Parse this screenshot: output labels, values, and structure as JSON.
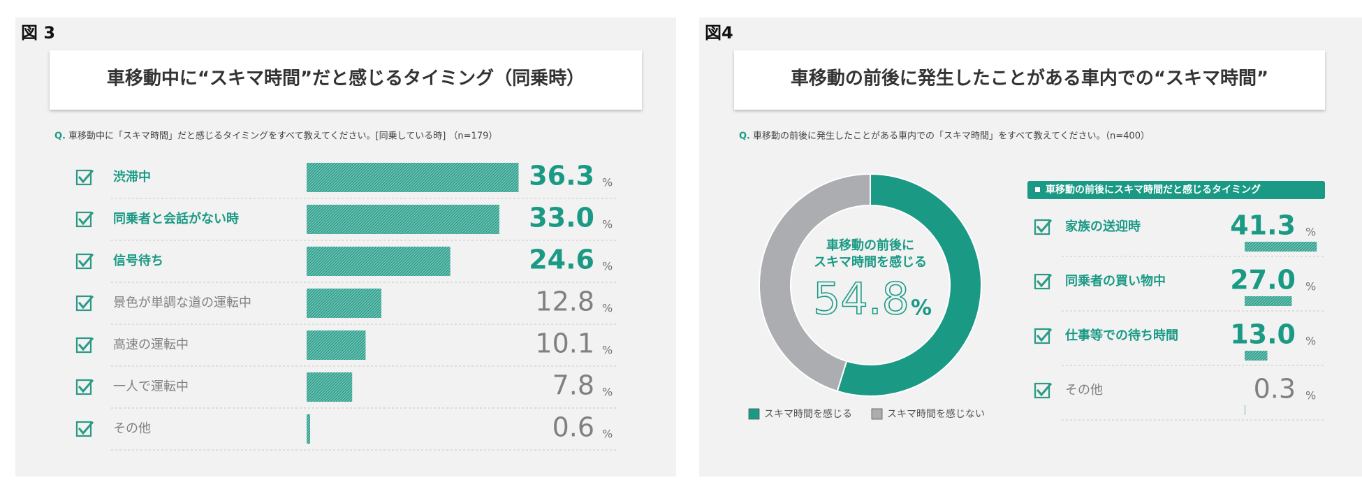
{
  "chart_data": [
    {
      "type": "bar",
      "figure_label": "図 3",
      "title": "車移動中に“スキマ時間”だと感じるタイミング（同乗時）",
      "question_prefix": "Q.",
      "question": "車移動中に「スキマ時間」だと感じるタイミングをすべて教えてください。[同乗している時] （n=179）",
      "categories": [
        "渋滞中",
        "同乗者と会話がない時",
        "信号待ち",
        "景色が単調な道の運転中",
        "高速の運転中",
        "一人で運転中",
        "その他"
      ],
      "values": [
        36.3,
        33,
        24.6,
        12.8,
        10.1,
        7.8,
        0.6
      ],
      "value_labels": [
        "36.3",
        "33.0",
        "24.6",
        "12.8",
        "10.1",
        "7.8",
        "0.6"
      ],
      "unit": "%",
      "color": "#1a9a85",
      "label_colors": [
        "#1a9a85",
        "#1a9a85",
        "#1a9a85",
        "#808080",
        "#808080",
        "#808080",
        "#808080"
      ]
    },
    {
      "type": "pie",
      "figure_label": "図4",
      "title": "車移動の前後に発生したことがある車内での“スキマ時間”",
      "question_prefix": "Q.",
      "question": "車移動の前後に発生したことがある車内での「スキマ時間」をすべて教えてください。（n=400）",
      "categories": [
        "スキマ時間を感じる",
        "スキマ時間を感じない"
      ],
      "values": [
        54.8,
        45.2
      ],
      "colors": [
        "#1a9a85",
        "#abadb0"
      ],
      "hole": true,
      "center_label": [
        "車移動の前後に",
        "スキマ時間を感じる"
      ],
      "unit": "%"
    },
    {
      "type": "bar",
      "title": "車移動の前後にスキマ時間だと感じるタイミング",
      "categories": [
        "家族の送迎時",
        "同乗者の買い物中",
        "仕事等での待ち時間",
        "その他"
      ],
      "values": [
        41.3,
        27,
        13,
        0.3
      ],
      "value_labels": [
        "41.3",
        "27.0",
        "13.0",
        "0.3"
      ],
      "unit": "%",
      "color": "#1a9a85",
      "label_colors": [
        "#1a9a85",
        "#1a9a85",
        "#1a9a85",
        "#808080"
      ]
    }
  ]
}
